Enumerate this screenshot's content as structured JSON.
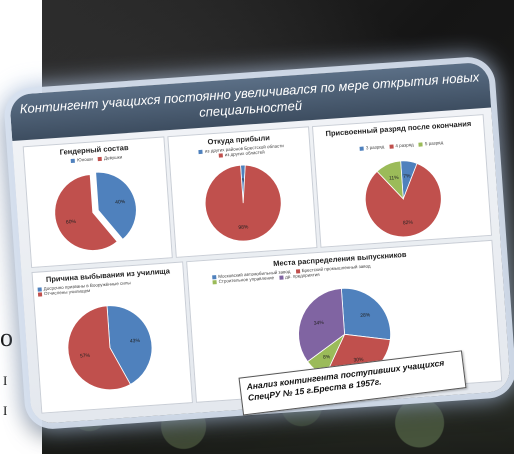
{
  "fragments": {
    "letter_o": "o",
    "fragment_1": "I",
    "fragment_2": "I"
  },
  "slide": {
    "header": "Контингент учащихся постоянно увеличивался по мере открытия новых специальностей",
    "caption": "Анализ контингента поступивших учащихся СпецРУ № 15 г.Бреста в 1957г."
  },
  "colors": {
    "blue": "#4f81bd",
    "red": "#c0504d",
    "green": "#9bbb59",
    "purple": "#8064a2"
  },
  "chart_data": [
    {
      "type": "pie",
      "title": "Гендерный состав",
      "legend": [
        "Юноши",
        "Девушки"
      ],
      "values": [
        40,
        60
      ],
      "labels": [
        "40%",
        "60%"
      ]
    },
    {
      "type": "pie",
      "title": "Откуда прибыли",
      "legend": [
        "из других районов Брестской области",
        "из других областей"
      ],
      "values": [
        2,
        98
      ],
      "labels": [
        "2%",
        "98%"
      ]
    },
    {
      "type": "pie",
      "title": "Присвоенный разряд после окончания",
      "legend": [
        "3 разряд",
        "4 разряд",
        "5 разряд"
      ],
      "values": [
        7,
        82,
        11
      ],
      "labels": [
        "7%",
        "82%",
        "11%"
      ]
    },
    {
      "type": "pie",
      "title": "Причина выбывания из училища",
      "legend": [
        "Досрочно призваны в Вооружённые силы",
        "Отчислены училищем"
      ],
      "values": [
        43,
        57
      ],
      "labels": [
        "43%",
        "57%"
      ]
    },
    {
      "type": "pie",
      "title": "Места распределения выпускников",
      "legend": [
        "Московский автомобильный завод",
        "Брестский промышленный завод",
        "Строительное управление",
        "др. предприятия"
      ],
      "values": [
        28,
        30,
        8,
        34
      ],
      "labels": [
        "28%",
        "30%",
        "8%",
        "34%"
      ]
    }
  ]
}
